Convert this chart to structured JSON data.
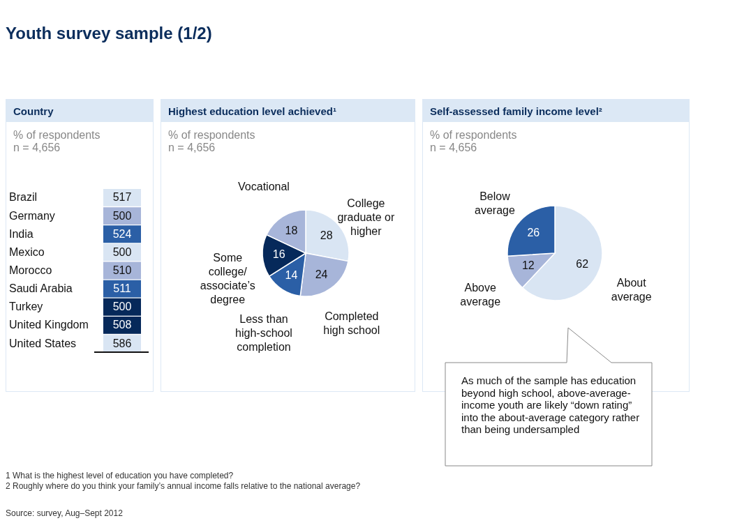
{
  "chart_data": [
    {
      "type": "other",
      "title": "Country",
      "subtitle": "% of respondents",
      "categories": [
        "Brazil",
        "Germany",
        "India",
        "Mexico",
        "Morocco",
        "Saudi Arabia",
        "Turkey",
        "United Kingdom",
        "United States"
      ],
      "values": [
        517,
        500,
        524,
        500,
        510,
        511,
        500,
        508,
        586
      ],
      "colors": [
        "#d9e5f3",
        "#a7b5d9",
        "#2b5fa6",
        "#d9e5f3",
        "#a7b5d9",
        "#2b5fa6",
        "#06295a",
        "#06295a",
        "#d9e5f3"
      ],
      "data_labels": true,
      "annotations": [
        "n = 4,656",
        "Youth survey sample (1/2)"
      ]
    },
    {
      "type": "pie",
      "title": "Highest education level achieved¹",
      "subtitle": "% of respondents",
      "categories": [
        "College graduate or higher",
        "Completed high school",
        "Less than high-school completion",
        "Some college/ associate’s degree",
        "Vocational"
      ],
      "values": [
        28,
        24,
        14,
        16,
        18
      ],
      "colors": [
        "#d9e5f3",
        "#a7b5d9",
        "#2b5fa6",
        "#06295a",
        "#a7b5d9"
      ],
      "data_labels": true,
      "annotations": [
        "n = 4,656"
      ]
    },
    {
      "type": "pie",
      "title": "Self-assessed family income level²",
      "subtitle": "% of respondents",
      "categories": [
        "About average",
        "Above average",
        "Below average"
      ],
      "values": [
        62,
        12,
        26
      ],
      "colors": [
        "#d9e5f3",
        "#a7b5d9",
        "#2b5fa6"
      ],
      "data_labels": true,
      "annotations": [
        "n = 4,656",
        "As much of the sample has education beyond high school, above-average-income youth are likely “down rating” into the about-average category rather than being undersampled",
        "1 What is the highest level of education you have completed?",
        "2 Roughly where do you think your family’s annual income falls relative to the national average?",
        "Source: survey, Aug–Sept 2012"
      ]
    }
  ]
}
